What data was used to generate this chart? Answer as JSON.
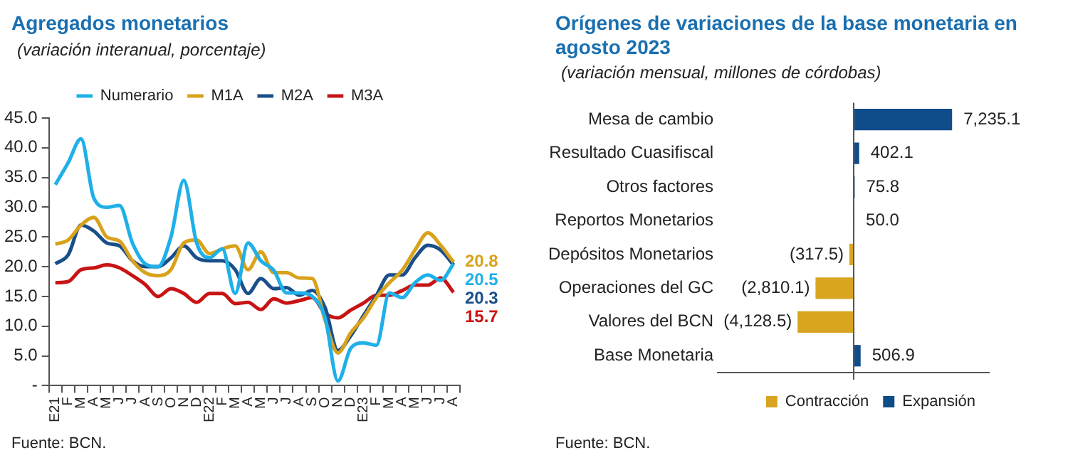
{
  "chart_data": [
    {
      "type": "line",
      "title": "Agregados monetarios",
      "subtitle": "(variación interanual, porcentaje)",
      "categories": [
        "E21",
        "F",
        "M",
        "A",
        "M",
        "J",
        "J",
        "A",
        "S",
        "O",
        "N",
        "D",
        "E22",
        "F",
        "M",
        "A",
        "M",
        "J",
        "J",
        "A",
        "S",
        "O",
        "N",
        "D",
        "E23",
        "F",
        "M",
        "A",
        "M",
        "J",
        "J",
        "A"
      ],
      "series": [
        {
          "name": "Numerario",
          "color": "#1fb0e8",
          "values": [
            33.8,
            37.5,
            41.5,
            31.5,
            30,
            30.3,
            24,
            20.5,
            20,
            25,
            34.5,
            24,
            21.5,
            23,
            15.5,
            24,
            21,
            19.4,
            15.6,
            15.6,
            15,
            11.4,
            0.8,
            6.3,
            7.2,
            6.8,
            15.6,
            14.8,
            17.3,
            18.6,
            17.7,
            20.5
          ],
          "value_labels": [
            null,
            null,
            null,
            null,
            null,
            null,
            null,
            null,
            null,
            null,
            null,
            null,
            null,
            null,
            null,
            null,
            null,
            null,
            null,
            null,
            null,
            null,
            null,
            null,
            null,
            null,
            null,
            null,
            null,
            null,
            null,
            "20.5"
          ]
        },
        {
          "name": "M1A",
          "color": "#d9a21b",
          "values": [
            23.8,
            24.5,
            27,
            28.3,
            25,
            24.3,
            21,
            19,
            18.5,
            19.5,
            24,
            24.5,
            22.2,
            23,
            23.5,
            19.5,
            22.5,
            19,
            19,
            18.1,
            18,
            11,
            5.5,
            8.9,
            11.4,
            14.8,
            17.3,
            19.4,
            22.8,
            25.7,
            23.6,
            20.8
          ],
          "value_labels": [
            null,
            null,
            null,
            null,
            null,
            null,
            null,
            null,
            null,
            null,
            null,
            null,
            null,
            null,
            null,
            null,
            null,
            null,
            null,
            null,
            null,
            null,
            null,
            null,
            null,
            null,
            null,
            null,
            null,
            null,
            null,
            "20.8"
          ]
        },
        {
          "name": "M2A",
          "color": "#1a4f8a",
          "values": [
            20.5,
            22,
            27,
            26,
            24,
            23.5,
            21,
            20,
            20,
            21.5,
            23.5,
            21.5,
            21,
            21,
            19.5,
            15.5,
            18,
            16.3,
            16.5,
            15.2,
            16,
            13.1,
            5.9,
            8.4,
            11.8,
            15.2,
            18.6,
            18.6,
            21.5,
            23.6,
            22.8,
            20.3
          ],
          "value_labels": [
            null,
            null,
            null,
            null,
            null,
            null,
            null,
            null,
            null,
            null,
            null,
            null,
            null,
            null,
            null,
            null,
            null,
            null,
            null,
            null,
            null,
            null,
            null,
            null,
            null,
            null,
            null,
            null,
            null,
            null,
            null,
            "20.3"
          ]
        },
        {
          "name": "M3A",
          "color": "#c81414",
          "values": [
            17.3,
            17.5,
            19.5,
            19.8,
            20.3,
            19.8,
            18.5,
            17,
            15,
            16.3,
            15.5,
            14,
            15.5,
            15.5,
            13.8,
            14,
            12.8,
            14.6,
            13.9,
            14.3,
            14.8,
            12.2,
            11.4,
            12.7,
            13.9,
            15.2,
            15.2,
            16,
            16.9,
            16.9,
            18.1,
            15.7
          ],
          "value_labels": [
            null,
            null,
            null,
            null,
            null,
            null,
            null,
            null,
            null,
            null,
            null,
            null,
            null,
            null,
            null,
            null,
            null,
            null,
            null,
            null,
            null,
            null,
            null,
            null,
            null,
            null,
            null,
            null,
            null,
            null,
            null,
            "15.7"
          ]
        }
      ],
      "ylim": [
        0,
        45
      ],
      "yticks": [
        {
          "value": 0,
          "label": "-"
        },
        {
          "value": 5,
          "label": "5.0"
        },
        {
          "value": 10,
          "label": "10.0"
        },
        {
          "value": 15,
          "label": "15.0"
        },
        {
          "value": 20,
          "label": "20.0"
        },
        {
          "value": 25,
          "label": "25.0"
        },
        {
          "value": 30,
          "label": "30.0"
        },
        {
          "value": 35,
          "label": "35.0"
        },
        {
          "value": 40,
          "label": "40.0"
        },
        {
          "value": 45,
          "label": "45.0"
        }
      ],
      "legend": "top",
      "marker": "none",
      "grid": false,
      "annotations": [
        "Fuente: BCN."
      ]
    },
    {
      "type": "bar",
      "orientation": "horizontal",
      "stacked": true,
      "title": "Orígenes de variaciones de la base monetaria en agosto 2023",
      "subtitle": "(variación mensual, millones de córdobas)",
      "categories": [
        "Mesa de cambio",
        "Resultado Cuasifiscal",
        "Otros factores",
        "Reportos Monetarios",
        "Depósitos Monetarios",
        "Operaciones del GC",
        "Valores del BCN",
        "Base Monetaria"
      ],
      "series": [
        {
          "name": "Contracción",
          "color": "#d9a520",
          "values": [
            null,
            null,
            null,
            null,
            -317.5,
            -2810.1,
            -4128.5,
            null
          ],
          "value_labels": [
            null,
            null,
            null,
            null,
            "(317.5)",
            "(2,810.1)",
            "(4,128.5)",
            null
          ]
        },
        {
          "name": "Expansión",
          "color": "#0f4c8a",
          "values": [
            7235.1,
            402.1,
            75.8,
            50.0,
            null,
            null,
            null,
            506.9
          ],
          "value_labels": [
            "7,235.1",
            "402.1",
            "75.8",
            "50.0",
            null,
            null,
            null,
            "506.9"
          ]
        }
      ],
      "tick_labels": "y",
      "legend": "bottom",
      "grid": false,
      "annotations": [
        "Fuente: BCN."
      ]
    }
  ]
}
